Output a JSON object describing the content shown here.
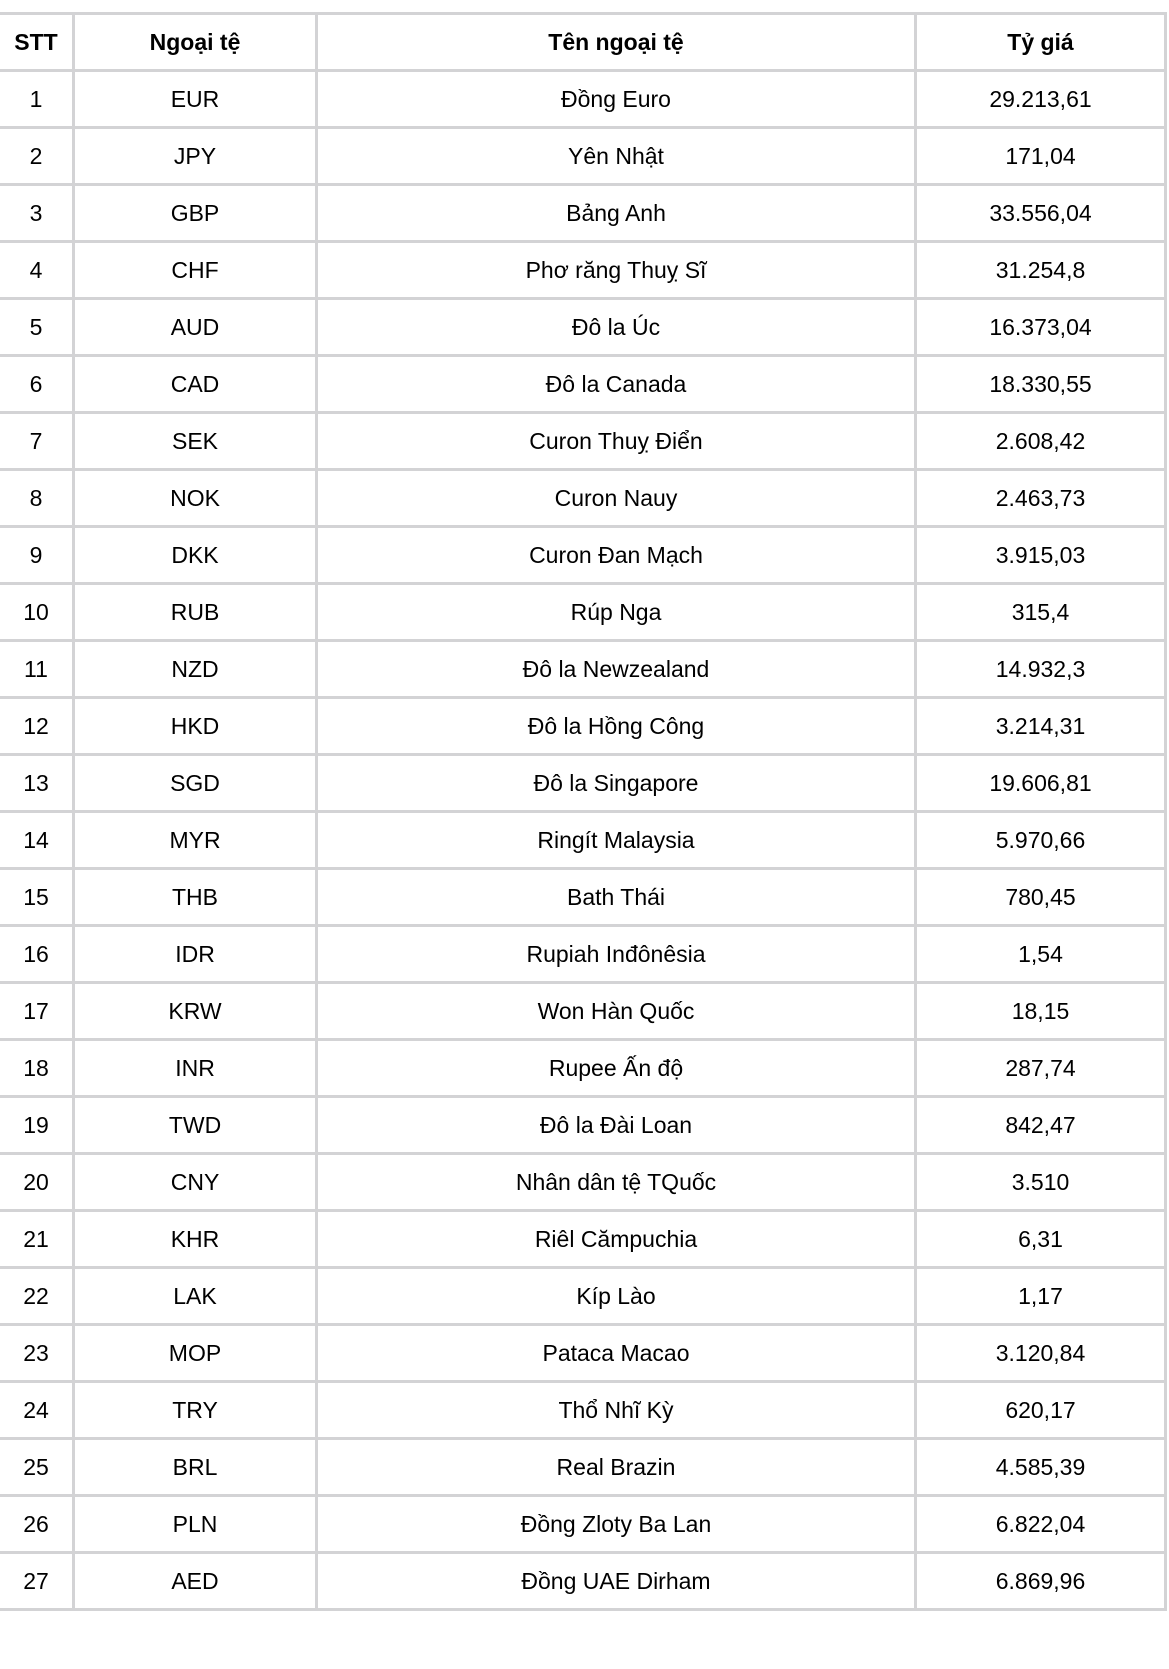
{
  "headers": [
    "STT",
    "Ngoại tệ",
    "Tên ngoại tệ",
    "Tỷ giá"
  ],
  "rows": [
    [
      "1",
      "EUR",
      "Đồng Euro",
      "29.213,61"
    ],
    [
      "2",
      "JPY",
      "Yên Nhật",
      "171,04"
    ],
    [
      "3",
      "GBP",
      "Bảng Anh",
      "33.556,04"
    ],
    [
      "4",
      "CHF",
      "Phơ răng Thuỵ Sĩ",
      "31.254,8"
    ],
    [
      "5",
      "AUD",
      "Đô la Úc",
      "16.373,04"
    ],
    [
      "6",
      "CAD",
      "Đô la Canada",
      "18.330,55"
    ],
    [
      "7",
      "SEK",
      "Curon Thuỵ Điển",
      "2.608,42"
    ],
    [
      "8",
      "NOK",
      "Curon Nauy",
      "2.463,73"
    ],
    [
      "9",
      "DKK",
      "Curon Đan Mạch",
      "3.915,03"
    ],
    [
      "10",
      "RUB",
      "Rúp Nga",
      "315,4"
    ],
    [
      "11",
      "NZD",
      "Đô la Newzealand",
      "14.932,3"
    ],
    [
      "12",
      "HKD",
      "Đô la Hồng Công",
      "3.214,31"
    ],
    [
      "13",
      "SGD",
      "Đô la Singapore",
      "19.606,81"
    ],
    [
      "14",
      "MYR",
      "Ringít Malaysia",
      "5.970,66"
    ],
    [
      "15",
      "THB",
      "Bath Thái",
      "780,45"
    ],
    [
      "16",
      "IDR",
      "Rupiah Inđônêsia",
      "1,54"
    ],
    [
      "17",
      "KRW",
      "Won Hàn Quốc",
      "18,15"
    ],
    [
      "18",
      "INR",
      "Rupee Ấn độ",
      "287,74"
    ],
    [
      "19",
      "TWD",
      "Đô la Đài Loan",
      "842,47"
    ],
    [
      "20",
      "CNY",
      "Nhân dân tệ TQuốc",
      "3.510"
    ],
    [
      "21",
      "KHR",
      "Riêl Cămpuchia",
      "6,31"
    ],
    [
      "22",
      "LAK",
      "Kíp Lào",
      "1,17"
    ],
    [
      "23",
      "MOP",
      "Pataca Macao",
      "3.120,84"
    ],
    [
      "24",
      "TRY",
      "Thổ Nhĩ Kỳ",
      "620,17"
    ],
    [
      "25",
      "BRL",
      "Real Brazin",
      "4.585,39"
    ],
    [
      "26",
      "PLN",
      "Đồng Zloty Ba Lan",
      "6.822,04"
    ],
    [
      "27",
      "AED",
      "Đồng UAE Dirham",
      "6.869,96"
    ]
  ]
}
